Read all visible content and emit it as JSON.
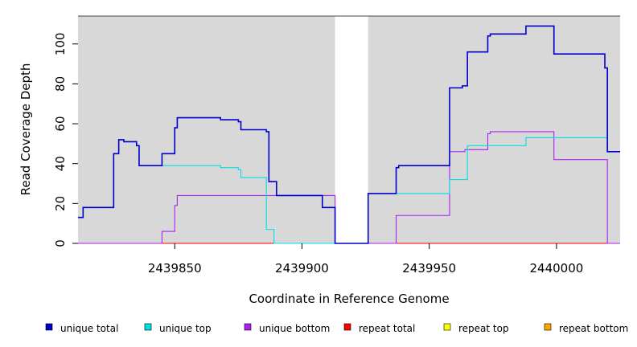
{
  "chart_data": {
    "type": "line",
    "step": true,
    "xlabel": "Coordinate in Reference Genome",
    "ylabel": "Read Coverage Depth",
    "xlim": [
      2439812,
      2440025
    ],
    "ylim": [
      0,
      114
    ],
    "xticks": [
      2439850,
      2439900,
      2439950,
      2440000
    ],
    "xtick_labels": [
      "2439850",
      "2439900",
      "2439950",
      "2440000"
    ],
    "yticks": [
      0,
      20,
      40,
      60,
      80,
      100
    ],
    "ytick_labels": [
      "0",
      "20",
      "40",
      "60",
      "80",
      "100"
    ],
    "shaded_regions": [
      [
        2439812,
        2439913
      ],
      [
        2439926,
        2440025
      ]
    ],
    "shade_color": "#d8d8d8",
    "legend_position": "bottom",
    "series": [
      {
        "name": "unique total",
        "color": "#0000cc",
        "x": [
          2439812,
          2439814,
          2439826,
          2439828,
          2439830,
          2439835,
          2439836,
          2439845,
          2439850,
          2439851,
          2439868,
          2439875,
          2439876,
          2439886,
          2439887,
          2439890,
          2439908,
          2439913,
          2439926,
          2439937,
          2439938,
          2439958,
          2439963,
          2439965,
          2439973,
          2439974,
          2439988,
          2439999,
          2440019,
          2440020,
          2440025
        ],
        "y": [
          13,
          18,
          45,
          52,
          51,
          49,
          39,
          45,
          58,
          63,
          62,
          61,
          57,
          56,
          31,
          24,
          18,
          0,
          25,
          38,
          39,
          78,
          79,
          96,
          104,
          105,
          109,
          95,
          88,
          46,
          46
        ]
      },
      {
        "name": "unique top",
        "color": "#00e0e0",
        "x": [
          2439812,
          2439814,
          2439826,
          2439828,
          2439830,
          2439835,
          2439836,
          2439845,
          2439868,
          2439875,
          2439876,
          2439886,
          2439889,
          2439913,
          2439926,
          2439937,
          2439958,
          2439965,
          2439988,
          2440020,
          2440025
        ],
        "y": [
          13,
          18,
          45,
          52,
          51,
          49,
          39,
          39,
          38,
          37,
          33,
          7,
          0,
          0,
          25,
          25,
          32,
          49,
          53,
          46,
          46
        ]
      },
      {
        "name": "unique bottom",
        "color": "#aa22ee",
        "x": [
          2439812,
          2439845,
          2439850,
          2439851,
          2439887,
          2439913,
          2439926,
          2439937,
          2439958,
          2439964,
          2439973,
          2439974,
          2439999,
          2440020,
          2440025
        ],
        "y": [
          0,
          6,
          19,
          24,
          24,
          0,
          0,
          14,
          46,
          47,
          55,
          56,
          42,
          0,
          0
        ]
      },
      {
        "name": "repeat total",
        "color": "#ff0000",
        "x": [
          2439812,
          2440025
        ],
        "y": [
          0,
          0
        ]
      },
      {
        "name": "repeat top",
        "color": "#ffff00",
        "x": [
          2439812,
          2440025
        ],
        "y": [
          0,
          0
        ]
      },
      {
        "name": "repeat bottom",
        "color": "#ffa500",
        "x": [
          2439812,
          2440025
        ],
        "y": [
          0,
          0
        ]
      }
    ]
  }
}
